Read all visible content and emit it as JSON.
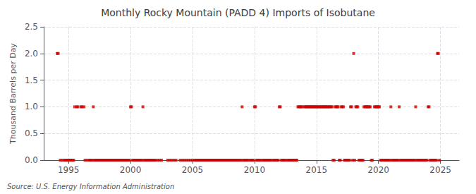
{
  "chart_data": {
    "type": "scatter",
    "title": "Monthly Rocky Mountain (PADD 4) Imports of Isobutane",
    "ylabel": "Thousand Barrels per Day",
    "annotation": "Source: U.S. Energy Information Administration",
    "color": "#cc0000",
    "marker": "square",
    "grid": true,
    "xlim": [
      1993.0,
      2026.5
    ],
    "xticks": [
      1995,
      2000,
      2005,
      2010,
      2015,
      2020,
      2025
    ],
    "ylim": [
      0.0,
      2.5
    ],
    "yticks": [
      {
        "value": 0.0,
        "label": "0.0"
      },
      0.5,
      {
        "value": 1.0,
        "label": "1.0"
      },
      1.5,
      {
        "value": 2.0,
        "label": "2.0"
      },
      2.5
    ],
    "x": [
      1994.08,
      1994.17,
      1994.33,
      1994.5,
      1994.67,
      1994.75,
      1994.83,
      1994.92,
      1995.0,
      1995.08,
      1995.17,
      1995.25,
      1995.33,
      1995.42,
      1995.5,
      1995.67,
      1995.75,
      1996.0,
      1996.08,
      1996.25,
      1996.33,
      1996.5,
      1996.67,
      1996.75,
      1996.83,
      1996.92,
      1997.0,
      1997.08,
      1997.17,
      1997.25,
      1997.33,
      1997.42,
      1997.5,
      1997.58,
      1997.67,
      1997.75,
      1997.83,
      1997.92,
      1998.0,
      1998.08,
      1998.17,
      1998.25,
      1998.33,
      1998.42,
      1998.5,
      1998.58,
      1998.67,
      1998.75,
      1998.83,
      1998.92,
      1999.0,
      1999.08,
      1999.17,
      1999.25,
      1999.33,
      1999.42,
      1999.5,
      1999.58,
      1999.67,
      1999.75,
      1999.83,
      1999.92,
      2000.0,
      2000.08,
      2000.17,
      2000.25,
      2000.33,
      2000.42,
      2000.5,
      2000.58,
      2000.67,
      2000.75,
      2000.83,
      2000.92,
      2001.0,
      2001.08,
      2001.17,
      2001.25,
      2001.33,
      2001.42,
      2001.5,
      2001.58,
      2001.67,
      2001.75,
      2001.83,
      2001.92,
      2002.0,
      2002.17,
      2002.33,
      2002.5,
      2003.0,
      2003.17,
      2003.33,
      2003.5,
      2003.67,
      2004.0,
      2004.17,
      2004.33,
      2004.5,
      2004.67,
      2004.83,
      2005.0,
      2005.17,
      2005.25,
      2005.33,
      2005.42,
      2005.5,
      2005.58,
      2005.67,
      2005.75,
      2005.83,
      2005.92,
      2006.0,
      2006.08,
      2006.17,
      2006.25,
      2006.33,
      2006.42,
      2006.5,
      2006.58,
      2006.67,
      2006.75,
      2006.83,
      2006.92,
      2007.0,
      2007.08,
      2007.17,
      2007.25,
      2007.33,
      2007.42,
      2007.5,
      2007.58,
      2007.67,
      2007.75,
      2007.83,
      2007.92,
      2008.0,
      2008.08,
      2008.17,
      2008.25,
      2008.33,
      2008.42,
      2008.5,
      2008.58,
      2008.67,
      2008.75,
      2008.83,
      2008.92,
      2009.0,
      2009.08,
      2009.17,
      2009.25,
      2009.33,
      2009.42,
      2009.5,
      2009.67,
      2009.75,
      2009.83,
      2009.92,
      2010.0,
      2010.08,
      2010.17,
      2010.25,
      2010.33,
      2010.42,
      2010.5,
      2010.67,
      2010.75,
      2010.83,
      2010.92,
      2011.0,
      2011.08,
      2011.17,
      2011.25,
      2011.33,
      2011.5,
      2011.58,
      2011.67,
      2011.75,
      2011.83,
      2011.92,
      2012.0,
      2012.08,
      2012.17,
      2012.25,
      2012.33,
      2012.42,
      2012.5,
      2012.67,
      2012.75,
      2012.83,
      2012.92,
      2013.0,
      2013.08,
      2013.17,
      2013.25,
      2013.33,
      2013.42,
      2013.5,
      2013.58,
      2013.67,
      2013.75,
      2013.83,
      2014.0,
      2014.08,
      2014.17,
      2014.25,
      2014.33,
      2014.42,
      2014.5,
      2014.58,
      2014.67,
      2014.75,
      2014.83,
      2014.92,
      2015.0,
      2015.08,
      2015.17,
      2015.25,
      2015.33,
      2015.42,
      2015.5,
      2015.58,
      2015.67,
      2015.75,
      2015.83,
      2015.92,
      2016.0,
      2016.08,
      2016.17,
      2016.25,
      2016.33,
      2016.42,
      2016.5,
      2016.58,
      2016.67,
      2016.75,
      2016.83,
      2016.92,
      2017.0,
      2017.08,
      2017.17,
      2017.25,
      2017.33,
      2017.42,
      2017.5,
      2017.58,
      2017.67,
      2017.75,
      2017.83,
      2017.92,
      2018.0,
      2018.08,
      2018.17,
      2018.25,
      2018.33,
      2018.42,
      2018.5,
      2018.58,
      2018.67,
      2018.75,
      2018.83,
      2018.92,
      2019.0,
      2019.08,
      2019.17,
      2019.25,
      2019.33,
      2019.42,
      2019.5,
      2019.67,
      2019.75,
      2019.83,
      2019.92,
      2020.0,
      2020.08,
      2020.17,
      2020.25,
      2020.33,
      2020.42,
      2020.5,
      2020.58,
      2020.67,
      2020.75,
      2020.83,
      2020.92,
      2021.0,
      2021.08,
      2021.17,
      2021.25,
      2021.33,
      2021.42,
      2021.5,
      2021.58,
      2021.67,
      2021.75,
      2021.83,
      2021.92,
      2022.0,
      2022.08,
      2022.17,
      2022.25,
      2022.33,
      2022.42,
      2022.5,
      2022.58,
      2022.67,
      2022.75,
      2022.83,
      2022.92,
      2023.0,
      2023.08,
      2023.17,
      2023.25,
      2023.33,
      2023.42,
      2023.5,
      2023.58,
      2023.67,
      2023.75,
      2023.83,
      2023.92,
      2024.0,
      2024.08,
      2024.17,
      2024.25,
      2024.33,
      2024.42,
      2024.5,
      2024.58,
      2024.67,
      2024.75,
      2024.83,
      2024.92
    ],
    "values": [
      2.0,
      2.0,
      0.0,
      0.0,
      0.0,
      0.0,
      0.0,
      0.0,
      0.0,
      0.0,
      0.0,
      0.0,
      0.0,
      0.0,
      1.0,
      1.0,
      1.0,
      1.0,
      1.0,
      1.0,
      0.0,
      0.0,
      0.0,
      0.0,
      0.0,
      0.0,
      1.0,
      0.0,
      0.0,
      0.0,
      0.0,
      0.0,
      0.0,
      0.0,
      0.0,
      0.0,
      0.0,
      0.0,
      0.0,
      0.0,
      0.0,
      0.0,
      0.0,
      0.0,
      0.0,
      0.0,
      0.0,
      0.0,
      0.0,
      0.0,
      0.0,
      0.0,
      0.0,
      0.0,
      0.0,
      0.0,
      0.0,
      0.0,
      0.0,
      0.0,
      0.0,
      0.0,
      1.0,
      1.0,
      0.0,
      0.0,
      0.0,
      0.0,
      0.0,
      0.0,
      0.0,
      0.0,
      0.0,
      0.0,
      1.0,
      0.0,
      0.0,
      0.0,
      0.0,
      0.0,
      0.0,
      0.0,
      0.0,
      0.0,
      0.0,
      0.0,
      0.0,
      0.0,
      0.0,
      0.0,
      0.0,
      0.0,
      0.0,
      0.0,
      0.0,
      0.0,
      0.0,
      0.0,
      0.0,
      0.0,
      0.0,
      0.0,
      0.0,
      0.0,
      0.0,
      0.0,
      0.0,
      0.0,
      0.0,
      0.0,
      0.0,
      0.0,
      0.0,
      0.0,
      0.0,
      0.0,
      0.0,
      0.0,
      0.0,
      0.0,
      0.0,
      0.0,
      0.0,
      0.0,
      0.0,
      0.0,
      0.0,
      0.0,
      0.0,
      0.0,
      0.0,
      0.0,
      0.0,
      0.0,
      0.0,
      0.0,
      0.0,
      0.0,
      0.0,
      0.0,
      0.0,
      0.0,
      0.0,
      0.0,
      0.0,
      0.0,
      0.0,
      0.0,
      1.0,
      0.0,
      0.0,
      0.0,
      0.0,
      0.0,
      0.0,
      0.0,
      0.0,
      0.0,
      0.0,
      1.0,
      1.0,
      0.0,
      0.0,
      0.0,
      0.0,
      0.0,
      0.0,
      0.0,
      0.0,
      0.0,
      0.0,
      0.0,
      0.0,
      0.0,
      0.0,
      0.0,
      0.0,
      0.0,
      0.0,
      0.0,
      0.0,
      1.0,
      1.0,
      0.0,
      0.0,
      0.0,
      0.0,
      0.0,
      0.0,
      0.0,
      0.0,
      0.0,
      0.0,
      0.0,
      0.0,
      0.0,
      0.0,
      0.0,
      1.0,
      1.0,
      1.0,
      1.0,
      1.0,
      1.0,
      1.0,
      1.0,
      1.0,
      1.0,
      1.0,
      1.0,
      1.0,
      1.0,
      1.0,
      1.0,
      1.0,
      1.0,
      1.0,
      1.0,
      1.0,
      1.0,
      1.0,
      1.0,
      1.0,
      1.0,
      1.0,
      1.0,
      1.0,
      1.0,
      1.0,
      1.0,
      1.0,
      0.0,
      0.0,
      1.0,
      1.0,
      1.0,
      1.0,
      0.0,
      0.0,
      1.0,
      1.0,
      1.0,
      0.0,
      0.0,
      0.0,
      0.0,
      0.0,
      0.0,
      1.0,
      1.0,
      0.0,
      2.0,
      0.0,
      1.0,
      1.0,
      1.0,
      0.0,
      0.0,
      0.0,
      0.0,
      0.0,
      1.0,
      1.0,
      1.0,
      1.0,
      1.0,
      1.0,
      1.0,
      0.0,
      0.0,
      1.0,
      1.0,
      1.0,
      1.0,
      1.0,
      1.0,
      0.0,
      0.0,
      0.0,
      0.0,
      0.0,
      0.0,
      0.0,
      0.0,
      0.0,
      0.0,
      1.0,
      0.0,
      0.0,
      0.0,
      0.0,
      0.0,
      0.0,
      0.0,
      1.0,
      0.0,
      0.0,
      0.0,
      0.0,
      0.0,
      0.0,
      0.0,
      0.0,
      0.0,
      0.0,
      0.0,
      0.0,
      0.0,
      0.0,
      0.0,
      1.0,
      0.0,
      0.0,
      0.0,
      0.0,
      0.0,
      0.0,
      0.0,
      0.0,
      0.0,
      0.0,
      0.0,
      1.0,
      1.0,
      0.0,
      0.0,
      0.0,
      0.0,
      0.0,
      0.0,
      0.0,
      2.0,
      2.0,
      0.0
    ]
  }
}
